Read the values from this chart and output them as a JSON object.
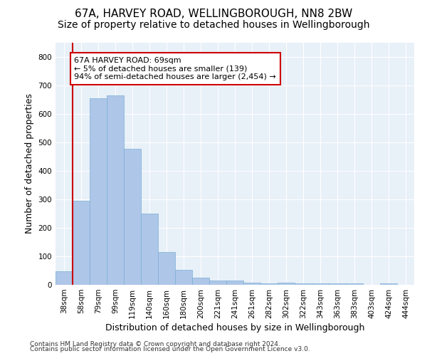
{
  "title1": "67A, HARVEY ROAD, WELLINGBOROUGH, NN8 2BW",
  "title2": "Size of property relative to detached houses in Wellingborough",
  "xlabel": "Distribution of detached houses by size in Wellingborough",
  "ylabel": "Number of detached properties",
  "footer1": "Contains HM Land Registry data © Crown copyright and database right 2024.",
  "footer2": "Contains public sector information licensed under the Open Government Licence v3.0.",
  "categories": [
    "38sqm",
    "58sqm",
    "79sqm",
    "99sqm",
    "119sqm",
    "140sqm",
    "160sqm",
    "180sqm",
    "200sqm",
    "221sqm",
    "241sqm",
    "261sqm",
    "282sqm",
    "302sqm",
    "322sqm",
    "343sqm",
    "363sqm",
    "383sqm",
    "403sqm",
    "424sqm",
    "444sqm"
  ],
  "values": [
    47,
    295,
    655,
    665,
    478,
    250,
    115,
    52,
    25,
    16,
    14,
    7,
    6,
    7,
    6,
    6,
    5,
    4,
    1,
    4,
    1
  ],
  "bar_color": "#aec6e8",
  "bar_edge_color": "#7aafd4",
  "vline_x": 1.5,
  "vline_color": "#cc0000",
  "annotation_text": "67A HARVEY ROAD: 69sqm\n← 5% of detached houses are smaller (139)\n94% of semi-detached houses are larger (2,454) →",
  "annotation_box_color": "#cc0000",
  "ylim": [
    0,
    850
  ],
  "bg_color": "#e8f0f8",
  "fig_bg": "#ffffff",
  "title1_fontsize": 11,
  "title2_fontsize": 10,
  "ylabel_fontsize": 9,
  "xlabel_fontsize": 9,
  "tick_fontsize": 7.5,
  "footer_fontsize": 6.5
}
